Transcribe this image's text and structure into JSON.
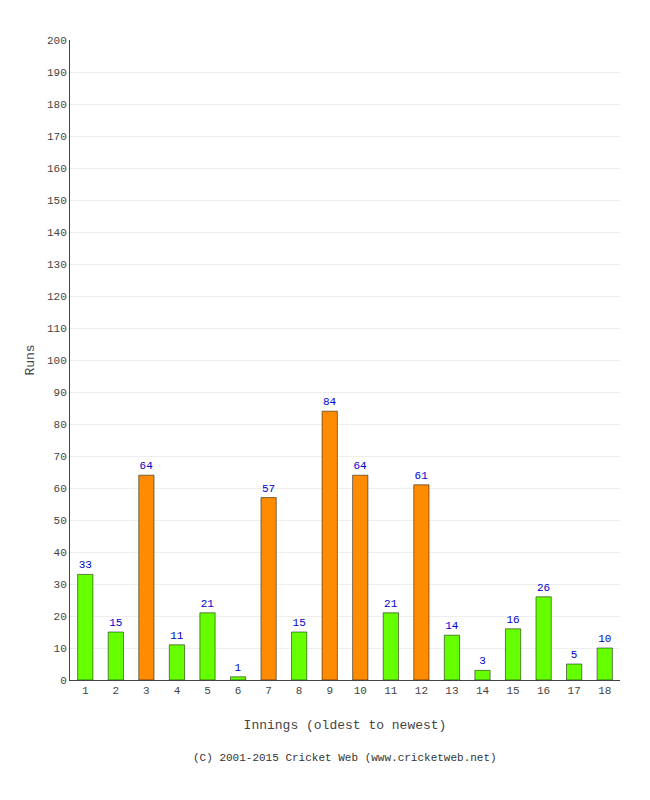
{
  "chart_data": {
    "type": "bar",
    "categories": [
      "1",
      "2",
      "3",
      "4",
      "5",
      "6",
      "7",
      "8",
      "9",
      "10",
      "11",
      "12",
      "13",
      "14",
      "15",
      "16",
      "17",
      "18"
    ],
    "values": [
      33,
      15,
      64,
      11,
      21,
      1,
      57,
      15,
      84,
      64,
      21,
      61,
      14,
      3,
      16,
      26,
      5,
      10
    ],
    "colors": [
      "#66ff00",
      "#66ff00",
      "#ff8c00",
      "#66ff00",
      "#66ff00",
      "#66ff00",
      "#ff8c00",
      "#66ff00",
      "#ff8c00",
      "#ff8c00",
      "#66ff00",
      "#ff8c00",
      "#66ff00",
      "#66ff00",
      "#66ff00",
      "#66ff00",
      "#66ff00",
      "#66ff00"
    ],
    "xlabel": "Innings (oldest to newest)",
    "ylabel": "Runs",
    "ylim": [
      0,
      200
    ],
    "yticks": [
      0,
      10,
      20,
      30,
      40,
      50,
      60,
      70,
      80,
      90,
      100,
      110,
      120,
      130,
      140,
      150,
      160,
      170,
      180,
      190,
      200
    ],
    "grid": true,
    "data_labels": true,
    "annotations": [
      "(C) 2001-2015 Cricket Web (www.cricketweb.net)"
    ]
  }
}
